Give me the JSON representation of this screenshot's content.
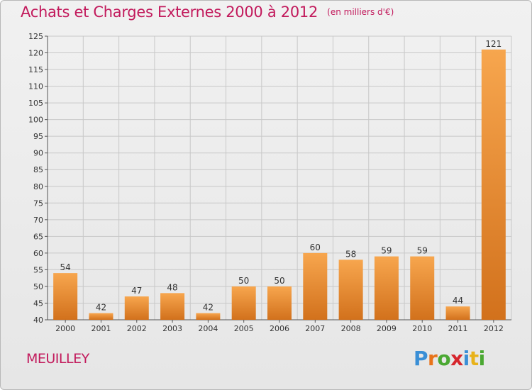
{
  "title": "Achats et Charges Externes 2000 à 2012",
  "unit": "(en milliers d'€)",
  "place": "MEUILLEY",
  "logo": {
    "text": "Proxiti",
    "letters": [
      "P",
      "r",
      "o",
      "x",
      "i",
      "t",
      "i"
    ],
    "colors": [
      "#3a8fd6",
      "#e8731a",
      "#4aa832",
      "#d6262d",
      "#3a8fd6",
      "#e8b21a",
      "#4aa832"
    ]
  },
  "colors": {
    "title": "#c21a5c",
    "bar_light": "#f7a64e",
    "bar_dark": "#d2711c",
    "grid": "#c8c8c8"
  },
  "chart_data": {
    "type": "bar",
    "title": "Achats et Charges Externes 2000 à 2012",
    "subtitle": "(en milliers d'€)",
    "xlabel": "",
    "ylabel": "",
    "categories": [
      "2000",
      "2001",
      "2002",
      "2003",
      "2004",
      "2005",
      "2006",
      "2007",
      "2008",
      "2009",
      "2010",
      "2011",
      "2012"
    ],
    "values": [
      54,
      42,
      47,
      48,
      42,
      50,
      50,
      60,
      58,
      59,
      59,
      44,
      121
    ],
    "ylim": [
      40,
      125
    ],
    "yticks": [
      40,
      45,
      50,
      55,
      60,
      65,
      70,
      75,
      80,
      85,
      90,
      95,
      100,
      105,
      110,
      115,
      120,
      125
    ],
    "grid": true,
    "legend": "none"
  }
}
